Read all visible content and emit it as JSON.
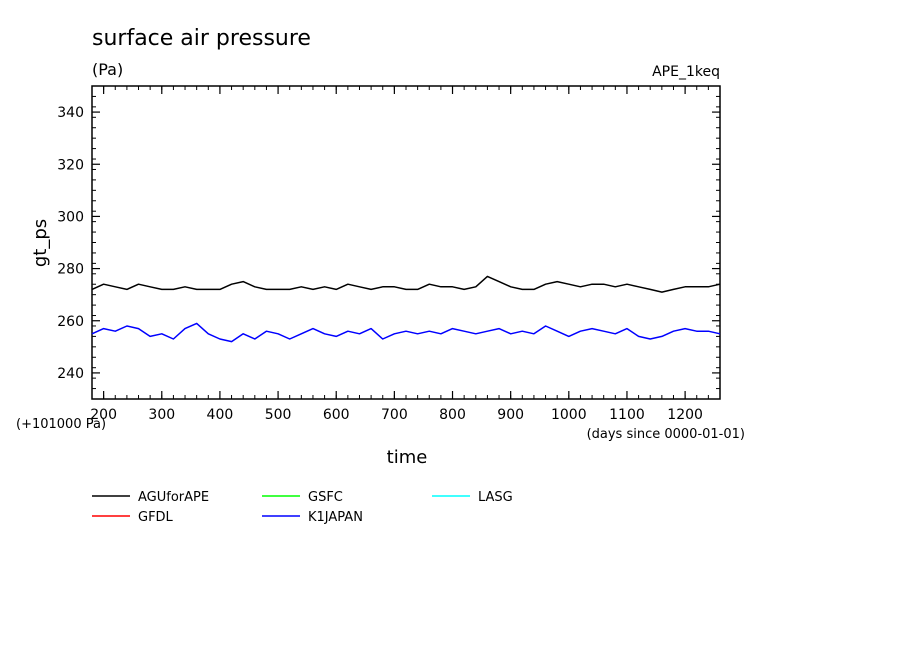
{
  "chart_data": {
    "type": "line",
    "title": "surface air pressure",
    "units": "(Pa)",
    "dataset_label": "APE_1keq",
    "ylabel": "gt_ps",
    "xlabel": "time",
    "x_unit_note": "(days since 0000-01-01)",
    "y_offset_note": "(+101000 Pa)",
    "xlim": [
      180,
      1260
    ],
    "ylim": [
      230,
      350
    ],
    "x_ticks": [
      200,
      300,
      400,
      500,
      600,
      700,
      800,
      900,
      1000,
      1100,
      1200
    ],
    "y_ticks": [
      240,
      260,
      280,
      300,
      320,
      340
    ],
    "series": [
      {
        "name": "AGUforAPE",
        "color": "#000000",
        "x": [
          180,
          200,
          220,
          240,
          260,
          280,
          300,
          320,
          340,
          360,
          380,
          400,
          420,
          440,
          460,
          480,
          500,
          520,
          540,
          560,
          580,
          600,
          620,
          640,
          660,
          680,
          700,
          720,
          740,
          760,
          780,
          800,
          820,
          840,
          860,
          880,
          900,
          920,
          940,
          960,
          980,
          1000,
          1020,
          1040,
          1060,
          1080,
          1100,
          1120,
          1140,
          1160,
          1180,
          1200,
          1220,
          1240,
          1260
        ],
        "values": [
          272,
          274,
          273,
          272,
          274,
          273,
          272,
          272,
          273,
          272,
          272,
          272,
          274,
          275,
          273,
          272,
          272,
          272,
          273,
          272,
          273,
          272,
          274,
          273,
          272,
          273,
          273,
          272,
          272,
          274,
          273,
          273,
          272,
          273,
          277,
          275,
          273,
          272,
          272,
          274,
          275,
          274,
          273,
          274,
          274,
          273,
          274,
          273,
          272,
          271,
          272,
          273,
          273,
          273,
          274
        ]
      },
      {
        "name": "GFDL",
        "color": "#ff0000",
        "x": [],
        "values": []
      },
      {
        "name": "GSFC",
        "color": "#00ff00",
        "x": [],
        "values": []
      },
      {
        "name": "K1JAPAN",
        "color": "#0000ff",
        "x": [
          180,
          200,
          220,
          240,
          260,
          280,
          300,
          320,
          340,
          360,
          380,
          400,
          420,
          440,
          460,
          480,
          500,
          520,
          540,
          560,
          580,
          600,
          620,
          640,
          660,
          680,
          700,
          720,
          740,
          760,
          780,
          800,
          820,
          840,
          860,
          880,
          900,
          920,
          940,
          960,
          980,
          1000,
          1020,
          1040,
          1060,
          1080,
          1100,
          1120,
          1140,
          1160,
          1180,
          1200,
          1220,
          1240,
          1260
        ],
        "values": [
          255,
          257,
          256,
          258,
          257,
          254,
          255,
          253,
          257,
          259,
          255,
          253,
          252,
          255,
          253,
          256,
          255,
          253,
          255,
          257,
          255,
          254,
          256,
          255,
          257,
          253,
          255,
          256,
          255,
          256,
          255,
          257,
          256,
          255,
          256,
          257,
          255,
          256,
          255,
          258,
          256,
          254,
          256,
          257,
          256,
          255,
          257,
          254,
          253,
          254,
          256,
          257,
          256,
          256,
          255
        ]
      },
      {
        "name": "LASG",
        "color": "#00ffff",
        "x": [],
        "values": []
      }
    ]
  }
}
